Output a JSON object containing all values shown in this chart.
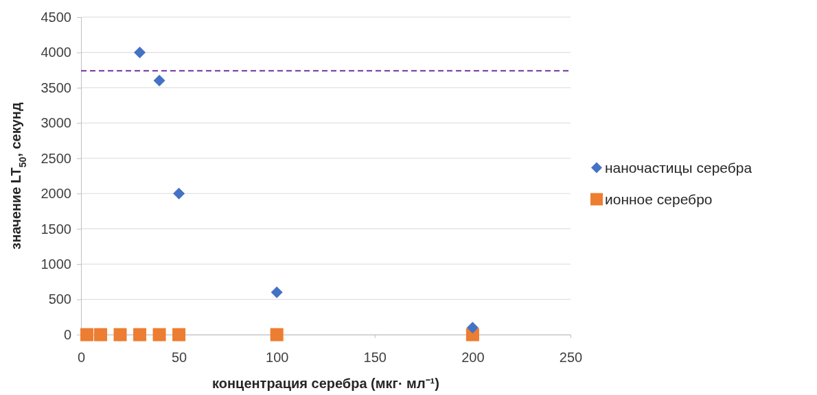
{
  "chart_data": {
    "type": "scatter",
    "xlabel": "концентрация серебра (мкг· мл⁻¹)",
    "ylabel": "значение LT$_{50}$, секунд",
    "xlim": [
      0,
      250
    ],
    "xticks": [
      0,
      50,
      100,
      150,
      200,
      250
    ],
    "ylim": [
      0,
      4500
    ],
    "yticks": [
      0,
      500,
      1000,
      1500,
      2000,
      2500,
      3000,
      3500,
      4000,
      4500
    ],
    "grid": "y",
    "legend": "right",
    "series": [
      {
        "name": "наночастицы серебра",
        "color": "#4472c4",
        "marker": "diamond",
        "x": [
          30,
          40,
          50,
          100,
          200
        ],
        "values": [
          4000,
          3600,
          2000,
          600,
          100
        ]
      },
      {
        "name": "ионное серебро",
        "color": "#ed7d31",
        "marker": "square",
        "x": [
          3,
          10,
          20,
          30,
          40,
          50,
          100,
          200
        ],
        "values": [
          0,
          0,
          0,
          0,
          0,
          0,
          0,
          0
        ]
      }
    ],
    "ref_lines": [
      {
        "axis": "y",
        "value": 3740,
        "color": "#7030a0",
        "line_style": "dashed"
      }
    ]
  }
}
